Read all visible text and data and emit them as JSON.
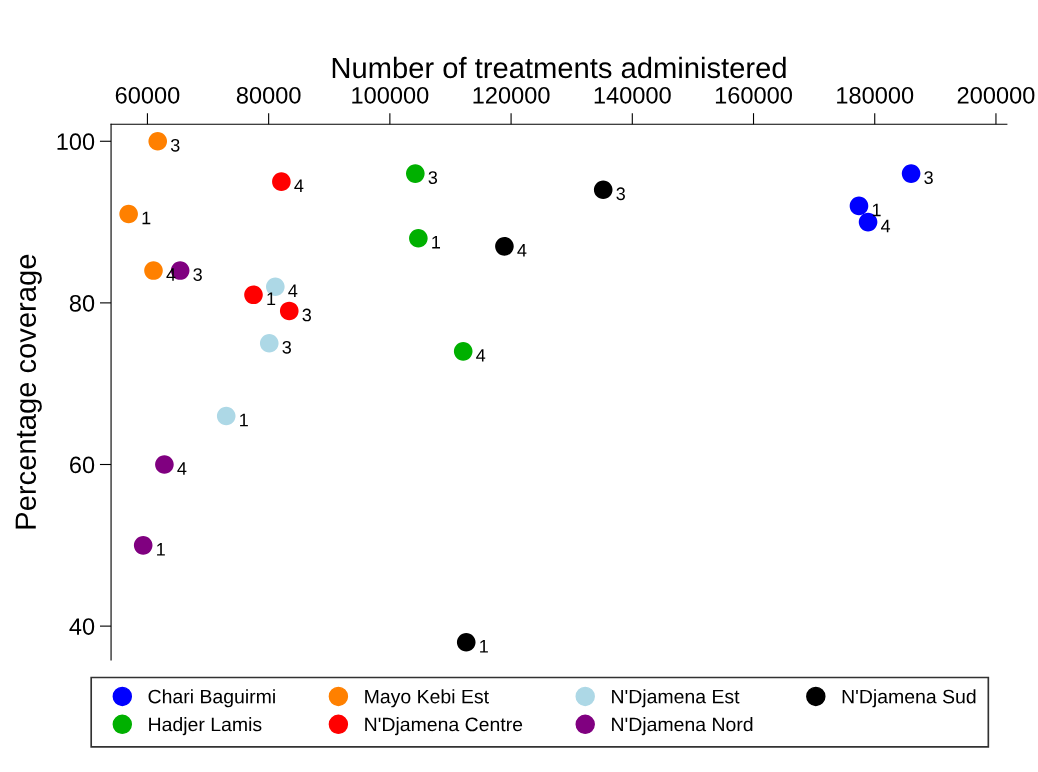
{
  "chart_data": {
    "type": "scatter",
    "xlabel": "Number of treatments administered",
    "ylabel": "Percentage coverage",
    "xlim": [
      54000,
      201800
    ],
    "ylim": [
      35.8,
      102.1
    ],
    "xticks": [
      60000,
      80000,
      100000,
      120000,
      140000,
      160000,
      180000,
      200000
    ],
    "yticks": [
      40,
      60,
      80,
      100
    ],
    "grid": false,
    "legend": "bottom",
    "marker": "circle",
    "series": [
      {
        "name": "Chari Baguirmi",
        "color": "#0000ff",
        "x": [
          177400,
          186000,
          178900
        ],
        "values": [
          92,
          96,
          90
        ]
      },
      {
        "name": "Hadjer Lamis",
        "color": "#00b000",
        "x": [
          104700,
          104200,
          112100
        ],
        "values": [
          88,
          96,
          74
        ]
      },
      {
        "name": "Mayo Kebi Est",
        "color": "#ff8000",
        "x": [
          56900,
          61700,
          61000
        ],
        "values": [
          91,
          100,
          84
        ]
      },
      {
        "name": "N'Djamena Centre",
        "color": "#ff0000",
        "x": [
          77500,
          83400,
          82100
        ],
        "values": [
          81,
          79,
          95
        ]
      },
      {
        "name": "N'Djamena Est",
        "color": "#add8e6",
        "x": [
          73000,
          80100,
          81100
        ],
        "values": [
          66,
          75,
          82
        ]
      },
      {
        "name": "N'Djamena Nord",
        "color": "#800080",
        "x": [
          59300,
          65400,
          62800
        ],
        "values": [
          50,
          84,
          60
        ]
      },
      {
        "name": "N'Djamena Sud",
        "color": "#000000",
        "x": [
          112600,
          135200,
          118900
        ],
        "values": [
          38,
          94,
          87
        ]
      }
    ],
    "annotations": [
      {
        "text": "1",
        "x": 177400,
        "y": 92
      },
      {
        "text": "3",
        "x": 186000,
        "y": 96
      },
      {
        "text": "4",
        "x": 178900,
        "y": 90
      },
      {
        "text": "1",
        "x": 104700,
        "y": 88
      },
      {
        "text": "3",
        "x": 104200,
        "y": 96
      },
      {
        "text": "4",
        "x": 112100,
        "y": 74
      },
      {
        "text": "1",
        "x": 56900,
        "y": 91
      },
      {
        "text": "3",
        "x": 61700,
        "y": 100
      },
      {
        "text": "4",
        "x": 61000,
        "y": 84
      },
      {
        "text": "1",
        "x": 77500,
        "y": 81
      },
      {
        "text": "3",
        "x": 83400,
        "y": 79
      },
      {
        "text": "4",
        "x": 82100,
        "y": 95
      },
      {
        "text": "1",
        "x": 73000,
        "y": 66
      },
      {
        "text": "3",
        "x": 80100,
        "y": 75
      },
      {
        "text": "4",
        "x": 81100,
        "y": 82
      },
      {
        "text": "1",
        "x": 59300,
        "y": 50
      },
      {
        "text": "3",
        "x": 65400,
        "y": 84
      },
      {
        "text": "4",
        "x": 62800,
        "y": 60
      },
      {
        "text": "1",
        "x": 112600,
        "y": 38
      },
      {
        "text": "3",
        "x": 135200,
        "y": 94
      },
      {
        "text": "4",
        "x": 118900,
        "y": 87
      }
    ]
  }
}
